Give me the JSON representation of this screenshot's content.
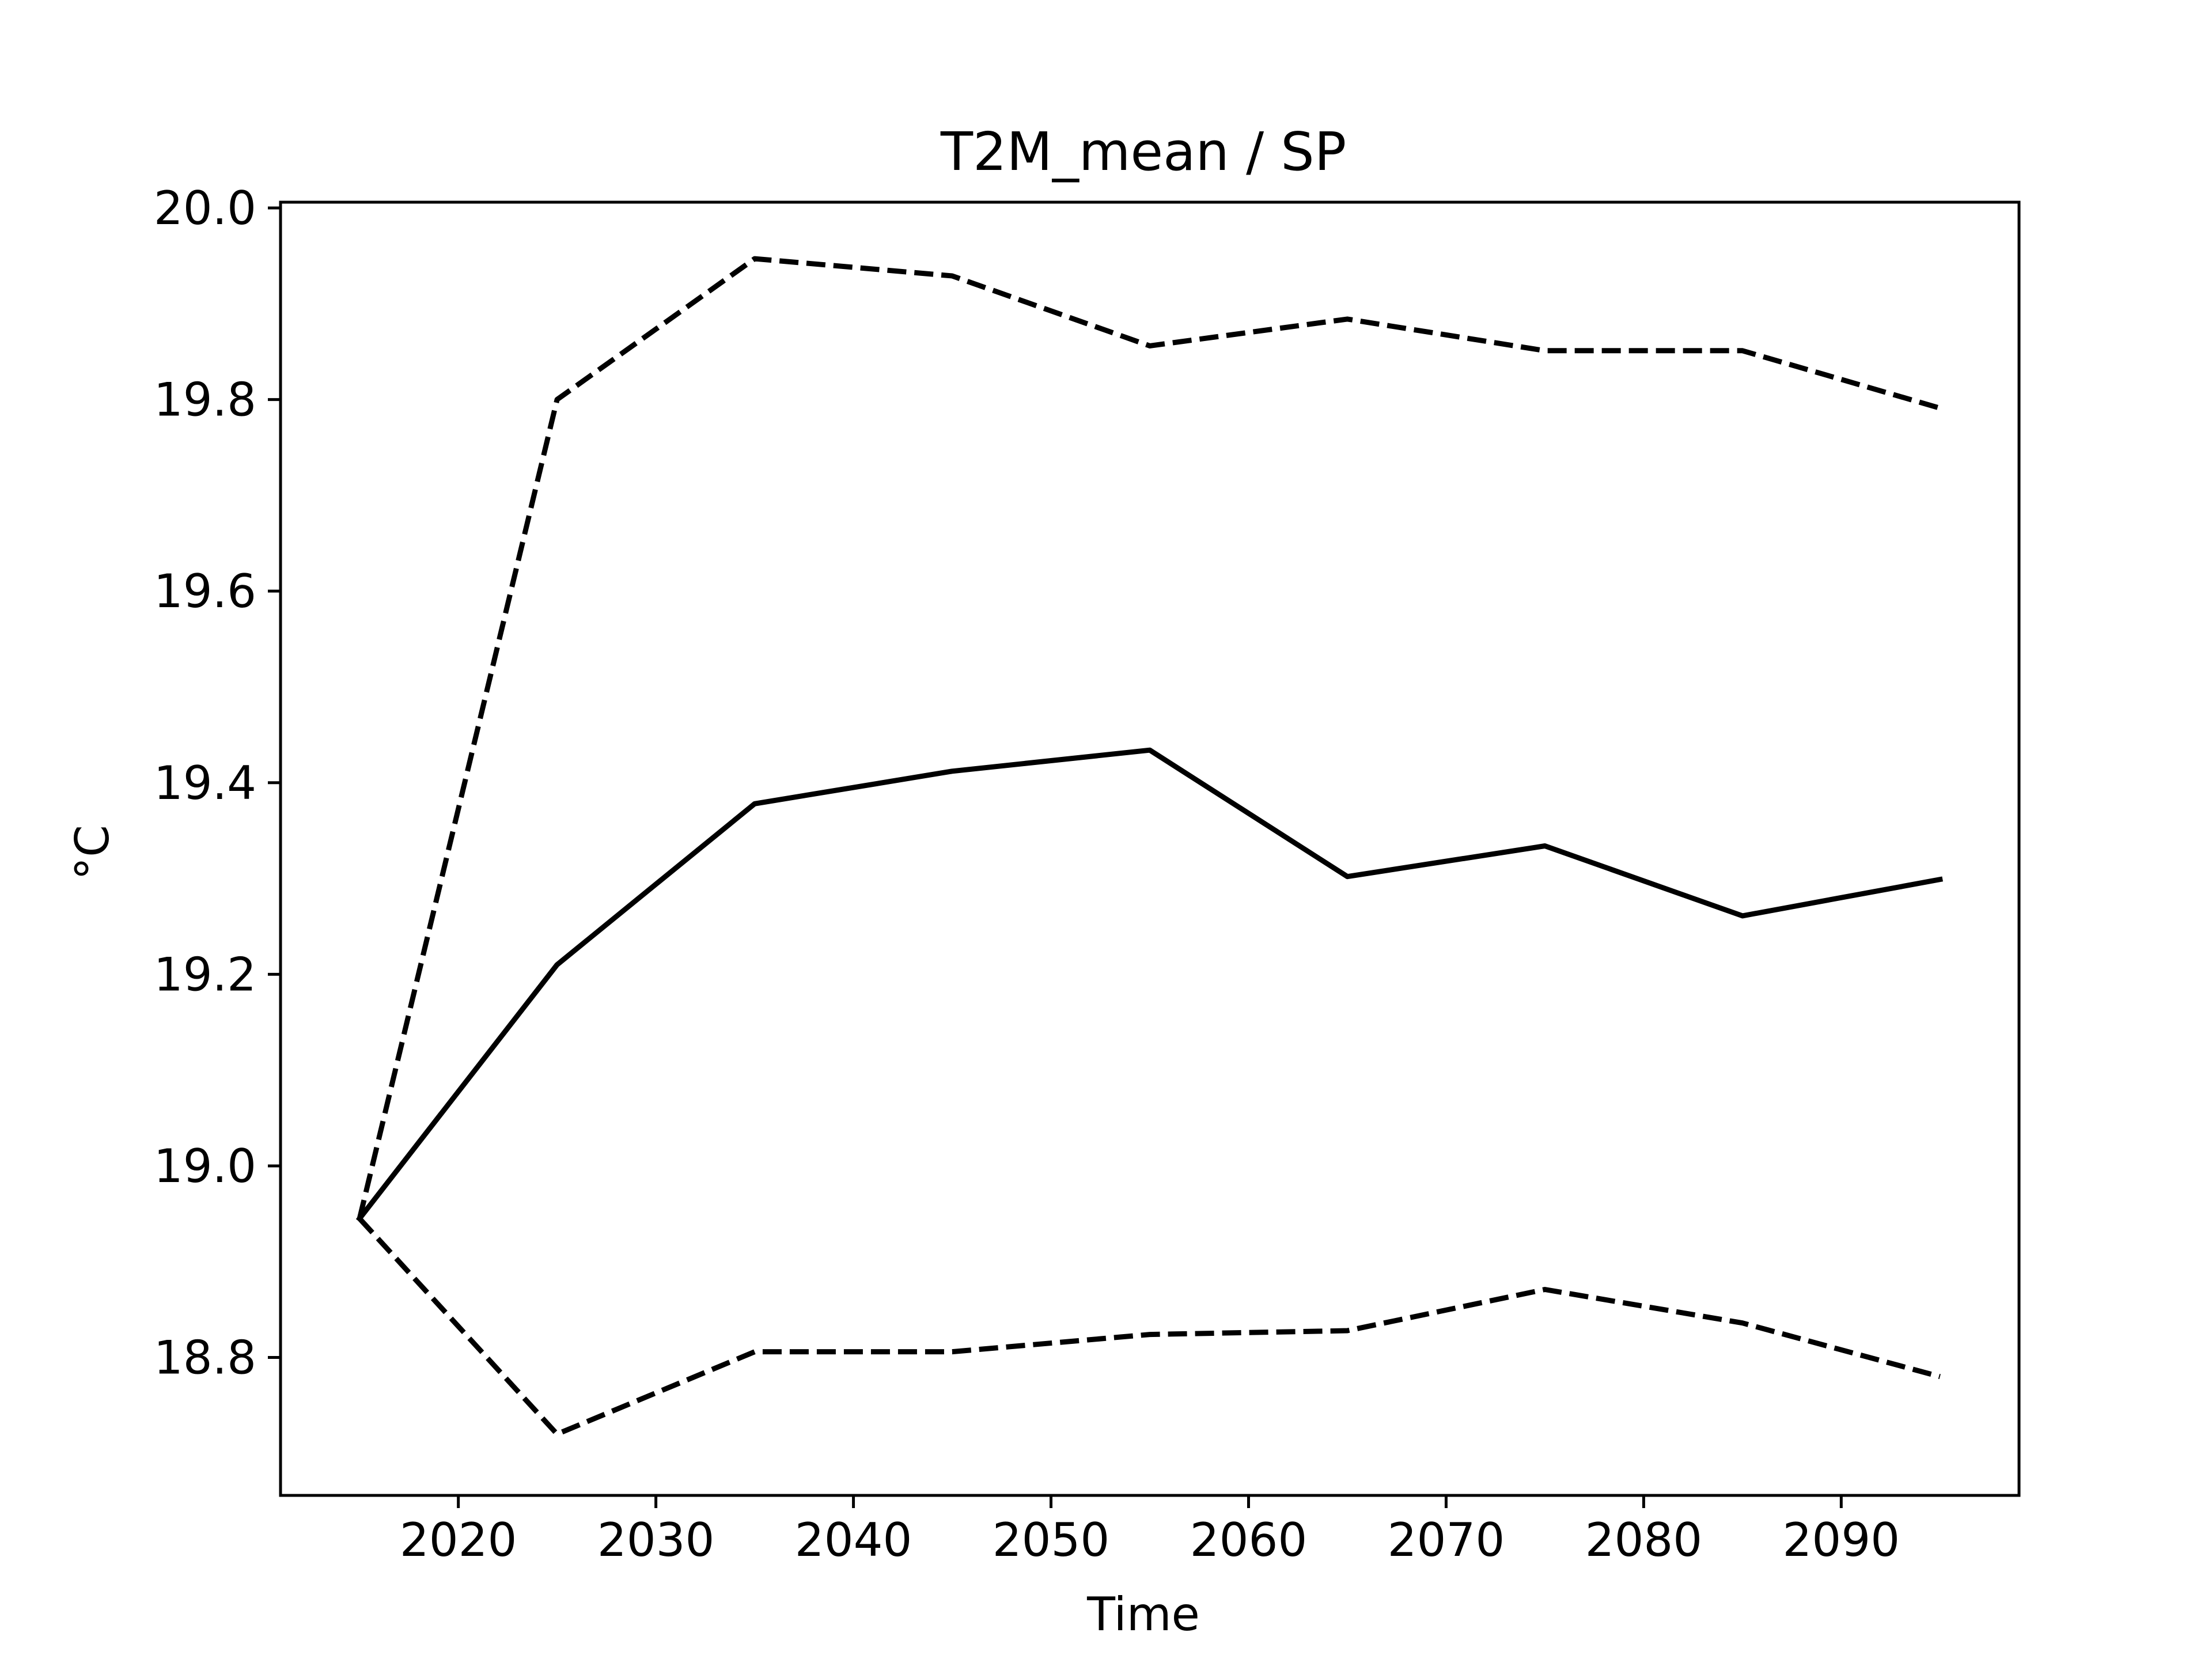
{
  "chart_data": {
    "type": "line",
    "title": "T2M_mean / SP",
    "xlabel": "Time",
    "ylabel": "°C",
    "xlim": [
      2011,
      2099
    ],
    "ylim": [
      18.656,
      20.006
    ],
    "x_ticks": [
      2020,
      2030,
      2040,
      2050,
      2060,
      2070,
      2080,
      2090
    ],
    "y_ticks": [
      18.8,
      19.0,
      19.2,
      19.4,
      19.6,
      19.8,
      20.0
    ],
    "y_tick_labels": [
      "18.8",
      "19.0",
      "19.2",
      "19.4",
      "19.6",
      "19.8",
      "20.0"
    ],
    "grid": false,
    "x": [
      2015,
      2025,
      2035,
      2045,
      2055,
      2065,
      2075,
      2085,
      2095
    ],
    "series": [
      {
        "style": "dashed",
        "color": "#000000",
        "values": [
          18.945,
          19.8,
          19.947,
          19.929,
          19.856,
          19.884,
          19.851,
          19.851,
          19.791
        ]
      },
      {
        "style": "solid",
        "color": "#000000",
        "values": [
          18.945,
          19.21,
          19.378,
          19.412,
          19.434,
          19.302,
          19.334,
          19.261,
          19.299
        ]
      },
      {
        "style": "dashed",
        "color": "#000000",
        "values": [
          18.945,
          18.72,
          18.806,
          18.806,
          18.824,
          18.828,
          18.871,
          18.836,
          18.78
        ]
      }
    ]
  }
}
